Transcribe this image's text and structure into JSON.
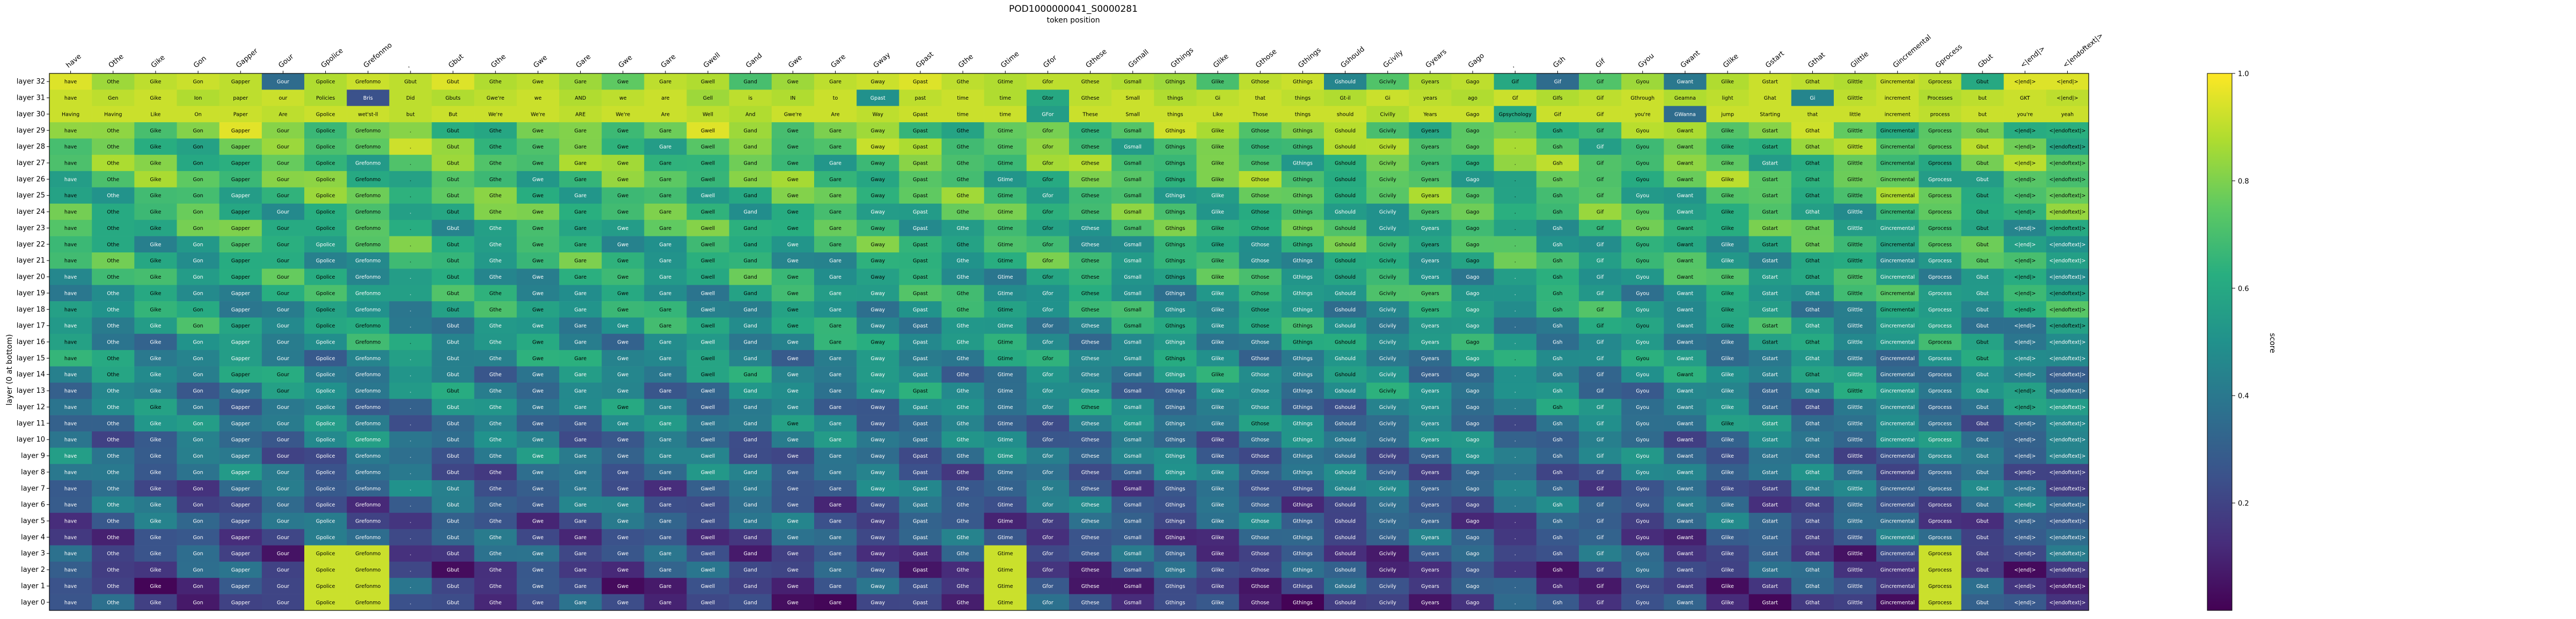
{
  "chart_data": {
    "type": "heatmap",
    "title": "POD1000000041_S0000281",
    "xlabel": "token position",
    "ylabel": "layer (0 at bottom)",
    "colorbar_label": "score",
    "colormap": "viridis",
    "value_range": [
      0.0,
      1.0
    ],
    "colorbar_ticks": [
      "0.2",
      "0.4",
      "0.6",
      "0.8",
      "1.0"
    ],
    "x_tokens": [
      "have",
      "Othe",
      "Gike",
      "Gon",
      "Gapper",
      "Gour",
      "Gpolice",
      "Grefonmo",
      ".",
      "Gbut",
      "Gthe",
      "Gwe",
      "Gare",
      "Gwe",
      "Gare",
      "Gwell",
      "Gand",
      "Gwe",
      "Gare",
      "Gway",
      "Gpast",
      "Gthe",
      "Gtime",
      "Gfor",
      "Gthese",
      "Gsmall",
      "Gthings",
      "Glike",
      "Gthose",
      "Gthings",
      "Gshould",
      "Gcivily",
      "Gyears",
      "Gago",
      ".",
      "Gsh",
      "Gif",
      "Gyou",
      "Gwant",
      "Glike",
      "Gstart",
      "Gthat",
      "Glittle",
      "Gincremental",
      "Gprocess",
      "Gbut",
      "<|end|>",
      "<|endoftext|>"
    ],
    "layers": [
      "layer 32",
      "layer 31",
      "layer 30",
      "layer 29",
      "layer 28",
      "layer 27",
      "layer 26",
      "layer 25",
      "layer 24",
      "layer 23",
      "layer 22",
      "layer 21",
      "layer 20",
      "layer 19",
      "layer 18",
      "layer 17",
      "layer 16",
      "layer 15",
      "layer 14",
      "layer 13",
      "layer 12",
      "layer 11",
      "layer 10",
      "layer 9",
      "layer 8",
      "layer 7",
      "layer 6",
      "layer 5",
      "layer 4",
      "layer 3",
      "layer 2",
      "layer 1",
      "layer 0"
    ],
    "top_rows": [
      {
        "layer": "layer 32",
        "tokens": [
          "have",
          "Othe",
          "Gike",
          "Gon",
          "Gapper",
          "Gour",
          "Gpolice",
          "Grefonmo",
          "Gbut",
          "Gbut",
          "Gthe",
          "Gwe",
          "Gare",
          "Gwe",
          "Gare",
          "Gwell",
          "Gand",
          "Gwe",
          "Gare",
          "Gway",
          "Gpast",
          "Gthe",
          "Gtime",
          "Gfor",
          "Gthese",
          "Gsmall",
          "Gthings",
          "Glike",
          "Gthose",
          "Gthings",
          "Gshould",
          "Gcivily",
          "Gyears",
          "Gago",
          "Gif",
          "Gif",
          "Gif",
          "Gyou",
          "Gwant",
          "Glike",
          "Gstart",
          "Gthat",
          "Glittle",
          "Gincremental",
          "Gprocess",
          "Gbut",
          "<|end|>",
          "<|end|>"
        ],
        "values": [
          0.95,
          0.85,
          0.9,
          0.92,
          0.9,
          0.35,
          0.88,
          0.92,
          0.9,
          0.95,
          0.88,
          0.9,
          0.85,
          0.75,
          0.9,
          0.88,
          0.7,
          0.85,
          0.9,
          0.92,
          0.95,
          0.9,
          0.88,
          0.9,
          0.9,
          0.88,
          0.85,
          0.7,
          0.9,
          0.92,
          0.45,
          0.72,
          0.88,
          0.9,
          0.6,
          0.35,
          0.72,
          0.85,
          0.4,
          0.88,
          0.92,
          0.9,
          0.88,
          0.92,
          0.9,
          0.6,
          0.95,
          0.95
        ]
      },
      {
        "layer": "layer 31",
        "tokens": [
          "have",
          "Gen",
          "Gike",
          "Ion",
          "paper",
          "our",
          "Policies",
          "Bris",
          "Did",
          "Gbuts",
          "Gwe're",
          "we",
          "AND",
          "we",
          "are",
          "Gell",
          "is",
          "IN",
          "to",
          "Gpast",
          "past",
          "time",
          "time",
          "Gtor",
          "Gthese",
          "Small",
          "things",
          "Gi",
          "that",
          "things",
          "Gt-il",
          "Gi",
          "years",
          "ago",
          "Gf",
          "GIfs",
          "Gif",
          "Gthrough",
          "Geamna",
          "light",
          "Ghat",
          "Gi",
          "Glittle",
          "increment",
          "Processes",
          "but",
          "GKT",
          "<|end|>"
        ],
        "values": [
          0.92,
          0.9,
          0.92,
          0.88,
          0.9,
          0.92,
          0.88,
          0.25,
          0.9,
          0.88,
          0.9,
          0.92,
          0.88,
          0.9,
          0.92,
          0.85,
          0.9,
          0.88,
          0.92,
          0.5,
          0.9,
          0.92,
          0.88,
          0.6,
          0.9,
          0.92,
          0.88,
          0.9,
          0.92,
          0.9,
          0.88,
          0.92,
          0.9,
          0.88,
          0.92,
          0.88,
          0.9,
          0.92,
          0.88,
          0.9,
          0.92,
          0.45,
          0.9,
          0.92,
          0.88,
          0.9,
          0.92,
          0.9
        ]
      },
      {
        "layer": "layer 30",
        "tokens": [
          "Having",
          "Having",
          "Like",
          "On",
          "Paper",
          "Are",
          "Gpolice",
          "wet'st-ll",
          "but",
          "But",
          "We're",
          "We're",
          "ARE",
          "We're",
          "Are",
          "Well",
          "And",
          "Gwe're",
          "Are",
          "Way",
          "Gpast",
          "time",
          "time",
          "GFor",
          "These",
          "Small",
          "things",
          "Like",
          "Those",
          "things",
          "should",
          "Civilly",
          "Years",
          "Gago",
          "Gpsychology",
          "Gif",
          "Gif",
          "you're",
          "GWanna",
          "jump",
          "Starting",
          "that",
          "little",
          "increment",
          "process",
          "but",
          "you're",
          "yeah"
        ],
        "values": [
          0.92,
          0.92,
          0.92,
          0.92,
          0.92,
          0.9,
          0.92,
          0.92,
          0.9,
          0.92,
          0.92,
          0.92,
          0.9,
          0.92,
          0.92,
          0.9,
          0.88,
          0.92,
          0.92,
          0.9,
          0.92,
          0.92,
          0.92,
          0.55,
          0.92,
          0.92,
          0.92,
          0.92,
          0.92,
          0.92,
          0.92,
          0.88,
          0.92,
          0.92,
          0.6,
          0.92,
          0.92,
          0.92,
          0.35,
          0.92,
          0.92,
          0.92,
          0.92,
          0.92,
          0.9,
          0.92,
          0.92,
          0.92
        ]
      }
    ]
  }
}
